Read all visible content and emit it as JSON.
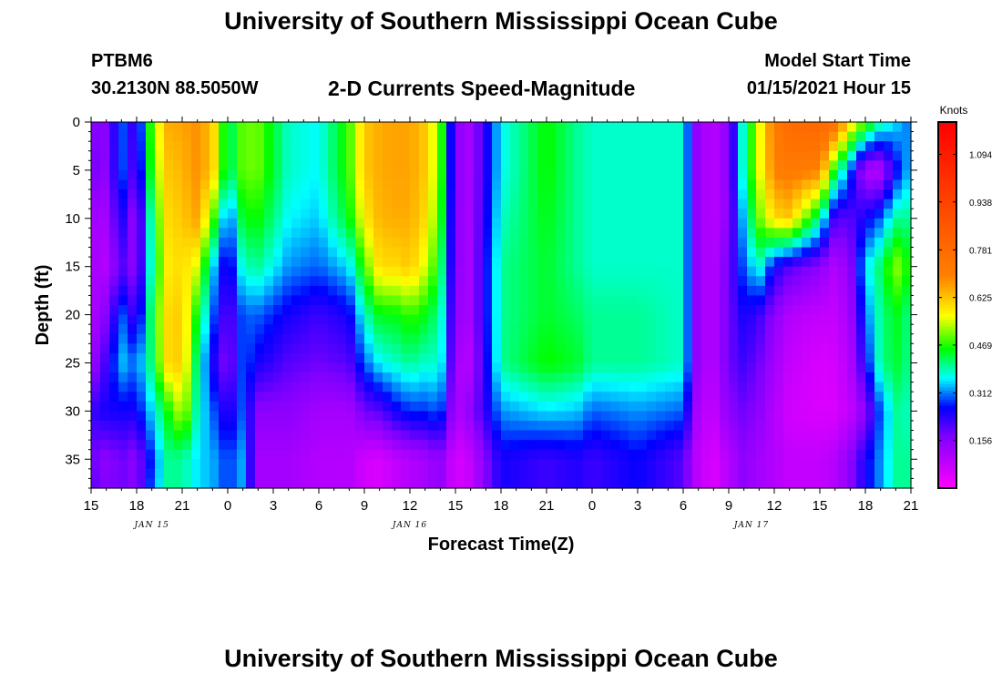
{
  "header": {
    "title": "University of Southern Mississippi Ocean Cube",
    "station_id": "PTBM6",
    "station_coords": "30.2130N 88.5050W",
    "plot_title": "2-D Currents Speed-Magnitude",
    "start_label": "Model Start Time",
    "start_value": "01/15/2021 Hour 15"
  },
  "footer": {
    "title": "University of Southern Mississippi Ocean Cube"
  },
  "chart_data": {
    "type": "heatmap",
    "title": "2-D Currents Speed-Magnitude",
    "xlabel": "Forecast Time(Z)",
    "ylabel": "Depth (ft)",
    "colorbar_label": "Knots",
    "xlim": [
      0,
      54
    ],
    "ylim": [
      0,
      38
    ],
    "y_inverted": true,
    "x_tick_labels": [
      "15",
      "18",
      "21",
      "0",
      "3",
      "6",
      "9",
      "12",
      "15",
      "18",
      "21",
      "0",
      "3",
      "6",
      "9",
      "12",
      "15",
      "18",
      "21"
    ],
    "y_ticks": [
      0,
      5,
      10,
      15,
      20,
      25,
      30,
      35
    ],
    "date_labels": [
      {
        "hour": 4,
        "text": "JAN 15"
      },
      {
        "hour": 21,
        "text": "JAN 16"
      },
      {
        "hour": 43.5,
        "text": "JAN 17"
      }
    ],
    "colorbar_ticks": [
      "1.094",
      "0.938",
      "0.781",
      "0.625",
      "0.469",
      "0.312",
      "0.156"
    ],
    "value_range": [
      0,
      1.2
    ],
    "colors": {
      "magenta": "#ff00ff",
      "purple": "#8000ff",
      "blue": "#0000ff",
      "cyan": "#00ffff",
      "green": "#00ff00",
      "yellow": "#ffff00",
      "orange": "#ff8000",
      "red": "#ff0000"
    },
    "depths": [
      0,
      5,
      10,
      15,
      20,
      25,
      30,
      35,
      38
    ],
    "hours": [
      0,
      1,
      2,
      3,
      4,
      5,
      6,
      7,
      8,
      9,
      10,
      11,
      13,
      15,
      17,
      18,
      19,
      20,
      21,
      22,
      23,
      24,
      25,
      27,
      30,
      32,
      33,
      36,
      39,
      40,
      41,
      42,
      43,
      44,
      45,
      46,
      48,
      49,
      50,
      51,
      52,
      53,
      54
    ],
    "values": [
      [
        0.16,
        0.18,
        0.12,
        0.12,
        0.1,
        0.12,
        0.22,
        0.18,
        0.2
      ],
      [
        0.16,
        0.15,
        0.12,
        0.1,
        0.16,
        0.22,
        0.25,
        0.15,
        0.16
      ],
      [
        0.3,
        0.3,
        0.25,
        0.2,
        0.3,
        0.34,
        0.25,
        0.18,
        0.18
      ],
      [
        0.2,
        0.18,
        0.12,
        0.14,
        0.2,
        0.3,
        0.25,
        0.15,
        0.15
      ],
      [
        0.5,
        0.48,
        0.42,
        0.4,
        0.44,
        0.42,
        0.35,
        0.28,
        0.3
      ],
      [
        0.65,
        0.62,
        0.6,
        0.58,
        0.6,
        0.6,
        0.45,
        0.4,
        0.4
      ],
      [
        0.66,
        0.64,
        0.62,
        0.6,
        0.62,
        0.62,
        0.55,
        0.4,
        0.4
      ],
      [
        0.68,
        0.68,
        0.66,
        0.55,
        0.45,
        0.4,
        0.38,
        0.35,
        0.35
      ],
      [
        0.62,
        0.62,
        0.5,
        0.35,
        0.3,
        0.25,
        0.3,
        0.33,
        0.33
      ],
      [
        0.4,
        0.4,
        0.28,
        0.22,
        0.18,
        0.15,
        0.22,
        0.28,
        0.28
      ],
      [
        0.5,
        0.5,
        0.45,
        0.38,
        0.3,
        0.3,
        0.3,
        0.33,
        0.33
      ],
      [
        0.5,
        0.5,
        0.46,
        0.4,
        0.3,
        0.25,
        0.15,
        0.12,
        0.12
      ],
      [
        0.38,
        0.38,
        0.36,
        0.32,
        0.25,
        0.2,
        0.15,
        0.12,
        0.12
      ],
      [
        0.36,
        0.36,
        0.34,
        0.3,
        0.22,
        0.18,
        0.12,
        0.1,
        0.1
      ],
      [
        0.48,
        0.48,
        0.45,
        0.35,
        0.25,
        0.2,
        0.12,
        0.1,
        0.1
      ],
      [
        0.62,
        0.62,
        0.58,
        0.48,
        0.38,
        0.3,
        0.18,
        0.06,
        0.06
      ],
      [
        0.65,
        0.65,
        0.64,
        0.6,
        0.45,
        0.36,
        0.2,
        0.05,
        0.05
      ],
      [
        0.66,
        0.66,
        0.65,
        0.6,
        0.45,
        0.38,
        0.25,
        0.08,
        0.08
      ],
      [
        0.66,
        0.66,
        0.65,
        0.62,
        0.48,
        0.4,
        0.28,
        0.1,
        0.1
      ],
      [
        0.62,
        0.62,
        0.6,
        0.55,
        0.45,
        0.38,
        0.28,
        0.12,
        0.12
      ],
      [
        0.5,
        0.5,
        0.48,
        0.44,
        0.4,
        0.38,
        0.3,
        0.15,
        0.15
      ],
      [
        0.15,
        0.15,
        0.15,
        0.15,
        0.14,
        0.12,
        0.1,
        0.05,
        0.05
      ],
      [
        0.12,
        0.12,
        0.12,
        0.12,
        0.12,
        0.1,
        0.15,
        0.08,
        0.08
      ],
      [
        0.36,
        0.36,
        0.38,
        0.4,
        0.4,
        0.4,
        0.32,
        0.25,
        0.25
      ],
      [
        0.46,
        0.46,
        0.45,
        0.44,
        0.44,
        0.46,
        0.35,
        0.22,
        0.22
      ],
      [
        0.4,
        0.4,
        0.4,
        0.4,
        0.42,
        0.44,
        0.34,
        0.24,
        0.24
      ],
      [
        0.38,
        0.38,
        0.38,
        0.38,
        0.4,
        0.4,
        0.3,
        0.22,
        0.22
      ],
      [
        0.38,
        0.38,
        0.38,
        0.38,
        0.4,
        0.4,
        0.32,
        0.26,
        0.26
      ],
      [
        0.38,
        0.38,
        0.38,
        0.38,
        0.38,
        0.38,
        0.3,
        0.2,
        0.2
      ],
      [
        0.12,
        0.12,
        0.12,
        0.12,
        0.12,
        0.12,
        0.1,
        0.08,
        0.08
      ],
      [
        0.1,
        0.1,
        0.1,
        0.1,
        0.1,
        0.1,
        0.08,
        0.05,
        0.05
      ],
      [
        0.15,
        0.15,
        0.15,
        0.18,
        0.18,
        0.18,
        0.15,
        0.1,
        0.1
      ],
      [
        0.4,
        0.4,
        0.35,
        0.3,
        0.25,
        0.22,
        0.18,
        0.15,
        0.15
      ],
      [
        0.55,
        0.55,
        0.5,
        0.38,
        0.22,
        0.18,
        0.15,
        0.12,
        0.12
      ],
      [
        0.72,
        0.7,
        0.6,
        0.25,
        0.15,
        0.12,
        0.1,
        0.1,
        0.1
      ],
      [
        0.78,
        0.72,
        0.62,
        0.2,
        0.1,
        0.08,
        0.06,
        0.08,
        0.08
      ],
      [
        0.8,
        0.7,
        0.4,
        0.15,
        0.08,
        0.05,
        0.05,
        0.08,
        0.08
      ],
      [
        0.76,
        0.45,
        0.2,
        0.1,
        0.08,
        0.06,
        0.05,
        0.1,
        0.1
      ],
      [
        0.6,
        0.3,
        0.2,
        0.15,
        0.12,
        0.1,
        0.08,
        0.15,
        0.15
      ],
      [
        0.5,
        0.1,
        0.25,
        0.35,
        0.3,
        0.25,
        0.15,
        0.25,
        0.25
      ],
      [
        0.4,
        0.1,
        0.3,
        0.42,
        0.4,
        0.4,
        0.3,
        0.32,
        0.32
      ],
      [
        0.35,
        0.25,
        0.4,
        0.52,
        0.45,
        0.44,
        0.4,
        0.4,
        0.4
      ],
      [
        0.3,
        0.35,
        0.4,
        0.45,
        0.4,
        0.4,
        0.38,
        0.4,
        0.4
      ]
    ]
  }
}
